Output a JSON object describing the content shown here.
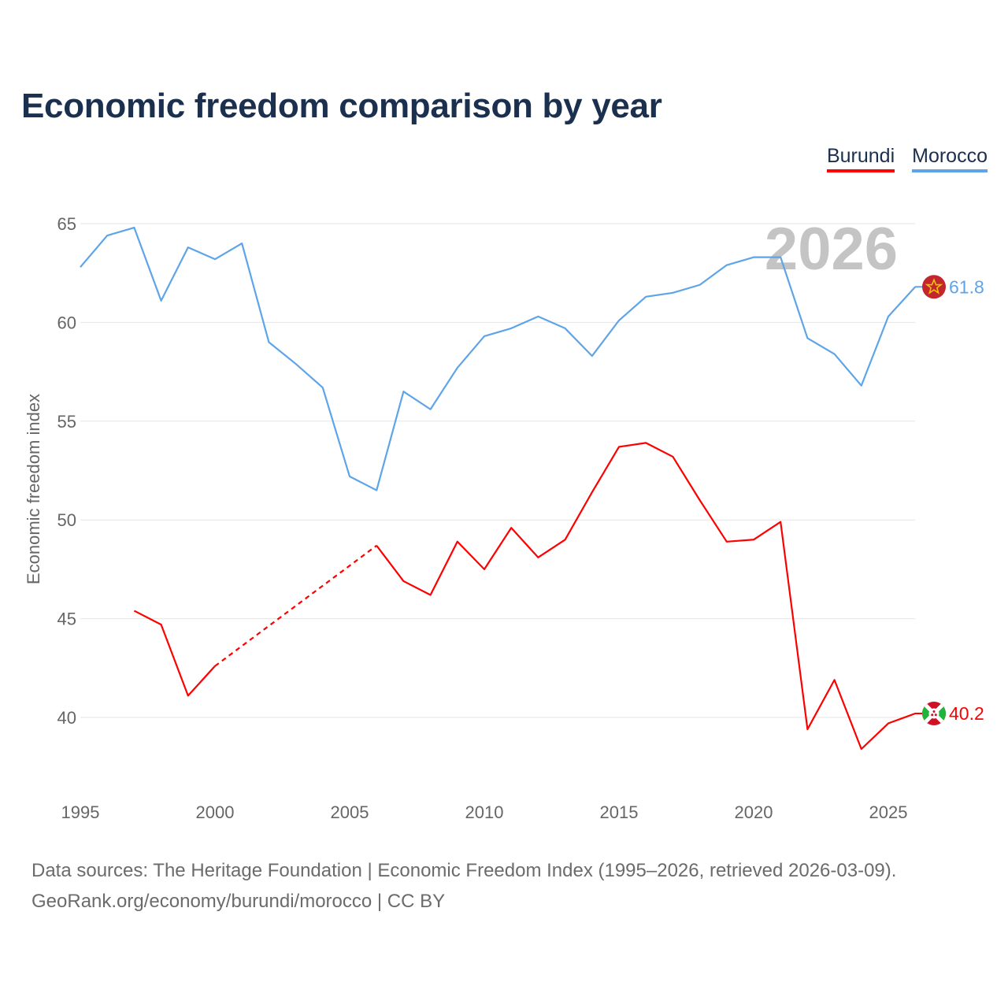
{
  "chart_data": {
    "type": "line",
    "title": "Economic freedom comparison by year",
    "ylabel": "Economic freedom index",
    "xlabel": "",
    "xlim": [
      1995,
      2026
    ],
    "ylim": [
      36.4,
      67
    ],
    "x_ticks": [
      1995,
      2000,
      2005,
      2010,
      2015,
      2020,
      2025
    ],
    "x_tick_labels": [
      "1995",
      "2000",
      "2005",
      "2010",
      "2015",
      "2020",
      "2025"
    ],
    "y_ticks": [
      40,
      45,
      50,
      55,
      60,
      65
    ],
    "y_tick_labels": [
      "40",
      "45",
      "50",
      "55",
      "60",
      "65"
    ],
    "grid": true,
    "legend_position": "top-right",
    "year_watermark": "2026",
    "x": [
      1995,
      1996,
      1997,
      1998,
      1999,
      2000,
      2001,
      2002,
      2003,
      2004,
      2005,
      2006,
      2007,
      2008,
      2009,
      2010,
      2011,
      2012,
      2013,
      2014,
      2015,
      2016,
      2017,
      2018,
      2019,
      2020,
      2021,
      2022,
      2023,
      2024,
      2025,
      2026
    ],
    "series": [
      {
        "name": "Burundi",
        "color": "#ff0000",
        "values": [
          null,
          null,
          45.4,
          44.7,
          41.1,
          42.6,
          null,
          null,
          null,
          null,
          null,
          48.7,
          46.9,
          46.2,
          48.9,
          47.5,
          49.6,
          48.1,
          49.0,
          51.4,
          53.7,
          53.9,
          53.2,
          51.0,
          48.9,
          49.0,
          49.9,
          39.4,
          41.9,
          38.4,
          39.7,
          40.2
        ],
        "end_label": "40.2",
        "flag": "burundi-flag"
      },
      {
        "name": "Morocco",
        "color": "#5ea4e8",
        "values": [
          62.8,
          64.4,
          64.8,
          61.1,
          63.8,
          63.2,
          64.0,
          59.0,
          57.9,
          56.7,
          52.2,
          51.5,
          56.5,
          55.6,
          57.7,
          59.3,
          59.7,
          60.3,
          59.7,
          58.3,
          60.1,
          61.3,
          61.5,
          61.9,
          62.9,
          63.3,
          63.3,
          59.2,
          58.4,
          56.8,
          60.3,
          61.8
        ],
        "end_label": "61.8",
        "flag": "morocco-flag"
      }
    ]
  },
  "footer": {
    "line1": "Data sources: The Heritage Foundation | Economic Freedom Index (1995–2026, retrieved 2026-03-09).",
    "line2": "GeoRank.org/economy/burundi/morocco | CC BY"
  }
}
